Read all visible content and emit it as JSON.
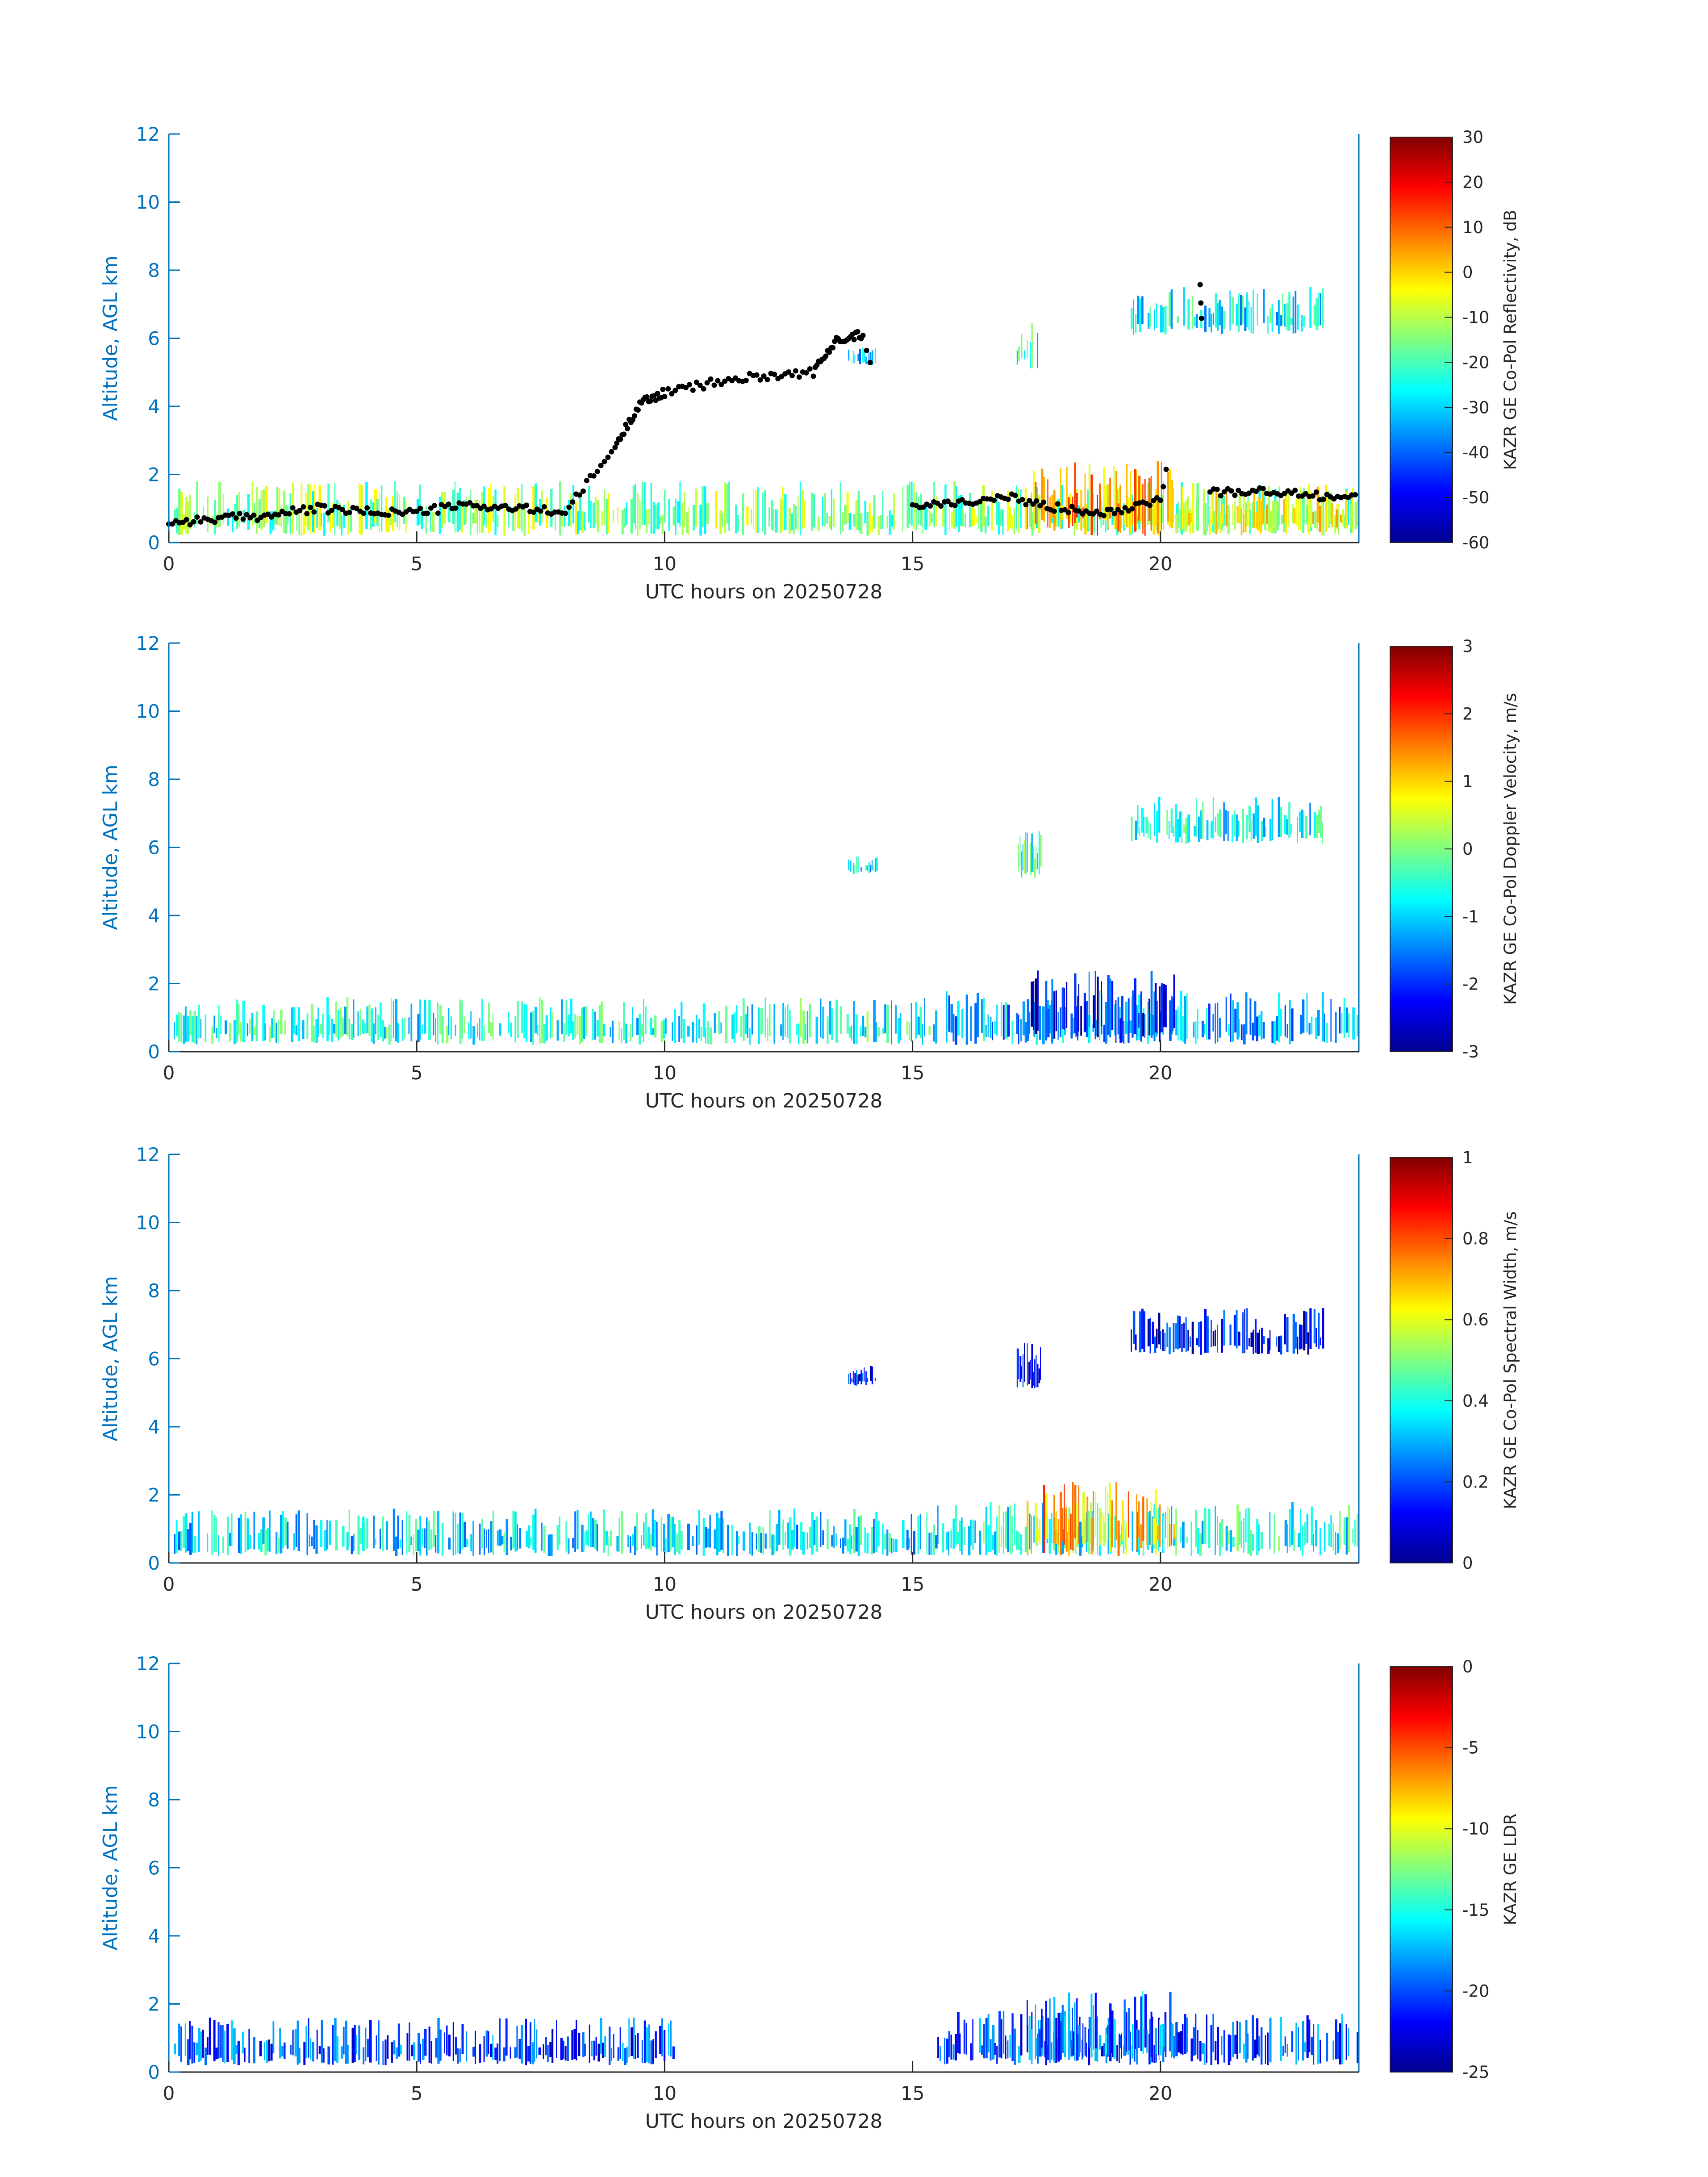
{
  "chart_data": [
    {
      "type": "heatmap",
      "panel": "reflectivity",
      "xlabel": "UTC hours on 20250728",
      "ylabel": "Altitude, AGL km",
      "xlim": [
        0,
        24
      ],
      "ylim": [
        0,
        12
      ],
      "xticks": [
        0,
        5,
        10,
        15,
        20
      ],
      "yticks": [
        0,
        2,
        4,
        6,
        8,
        10,
        12
      ],
      "colorbar": {
        "label": "KAZR GE Co-Pol Reflectivity, dB",
        "range": [
          -60,
          30
        ],
        "ticks": [
          30,
          20,
          10,
          0,
          -10,
          -20,
          -30,
          -40,
          -50,
          -60
        ]
      },
      "echoes": [
        {
          "x0": 0.1,
          "x1": 24.0,
          "y0": 0.2,
          "y1": 1.8,
          "level": 0.5
        },
        {
          "x0": 17.3,
          "x1": 20.3,
          "y0": 0.2,
          "y1": 2.4,
          "level": 0.72
        },
        {
          "x0": 20.3,
          "x1": 24.0,
          "y0": 0.2,
          "y1": 1.8,
          "level": 0.6
        },
        {
          "x0": 13.7,
          "x1": 14.3,
          "y0": 5.2,
          "y1": 5.8,
          "level": 0.35
        },
        {
          "x0": 17.1,
          "x1": 17.6,
          "y0": 5.1,
          "y1": 6.5,
          "level": 0.4
        },
        {
          "x0": 19.4,
          "x1": 23.3,
          "y0": 6.1,
          "y1": 7.5,
          "level": 0.37
        }
      ],
      "cloud_base_series": {
        "x": [
          0,
          1,
          2,
          3,
          4,
          5,
          6,
          7,
          8,
          9,
          9.5,
          10,
          11,
          12,
          13,
          13.5,
          14,
          15,
          16,
          17,
          18,
          19,
          20,
          20.8,
          21,
          22,
          23,
          24
        ],
        "y": [
          0.6,
          0.7,
          0.8,
          1.0,
          0.9,
          0.9,
          1.1,
          1.0,
          0.9,
          2.8,
          4.1,
          4.4,
          4.7,
          4.9,
          5.0,
          6.0,
          6.1,
          1.1,
          1.2,
          1.3,
          1.0,
          0.9,
          1.3,
          7.5,
          1.5,
          1.5,
          1.4,
          1.3
        ]
      }
    },
    {
      "type": "heatmap",
      "panel": "doppler_velocity",
      "xlabel": "UTC hours on 20250728",
      "ylabel": "Altitude, AGL km",
      "xlim": [
        0,
        24
      ],
      "ylim": [
        0,
        12
      ],
      "xticks": [
        0,
        5,
        10,
        15,
        20
      ],
      "yticks": [
        0,
        2,
        4,
        6,
        8,
        10,
        12
      ],
      "colorbar": {
        "label": "KAZR GE Co-Pol Doppler Velocity, m/s",
        "range": [
          -3,
          3
        ],
        "ticks": [
          3,
          2,
          1,
          0,
          -1,
          -2,
          -3
        ]
      },
      "echoes": [
        {
          "x0": 0.1,
          "x1": 15.5,
          "y0": 0.2,
          "y1": 1.6,
          "level": 0.4
        },
        {
          "x0": 15.5,
          "x1": 24.0,
          "y0": 0.2,
          "y1": 1.8,
          "level": 0.3
        },
        {
          "x0": 17.3,
          "x1": 20.3,
          "y0": 0.2,
          "y1": 2.4,
          "level": 0.12
        },
        {
          "x0": 13.7,
          "x1": 14.3,
          "y0": 5.2,
          "y1": 5.8,
          "level": 0.38
        },
        {
          "x0": 17.1,
          "x1": 17.6,
          "y0": 5.1,
          "y1": 6.5,
          "level": 0.42
        },
        {
          "x0": 19.4,
          "x1": 23.3,
          "y0": 6.1,
          "y1": 7.5,
          "level": 0.38
        }
      ]
    },
    {
      "type": "heatmap",
      "panel": "spectral_width",
      "xlabel": "UTC hours on 20250728",
      "ylabel": "Altitude, AGL km",
      "xlim": [
        0,
        24
      ],
      "ylim": [
        0,
        12
      ],
      "xticks": [
        0,
        5,
        10,
        15,
        20
      ],
      "yticks": [
        0,
        2,
        4,
        6,
        8,
        10,
        12
      ],
      "colorbar": {
        "label": "KAZR GE Co-Pol Spectral Width, m/s",
        "range": [
          0,
          1
        ],
        "ticks": [
          1,
          0.8,
          0.6,
          0.4,
          0.2,
          0
        ]
      },
      "echoes": [
        {
          "x0": 0.1,
          "x1": 15.5,
          "y0": 0.2,
          "y1": 1.6,
          "level": 0.35
        },
        {
          "x0": 15.5,
          "x1": 24.0,
          "y0": 0.2,
          "y1": 1.8,
          "level": 0.4
        },
        {
          "x0": 17.3,
          "x1": 20.3,
          "y0": 0.2,
          "y1": 2.4,
          "level": 0.7
        },
        {
          "x0": 13.7,
          "x1": 14.3,
          "y0": 5.2,
          "y1": 5.8,
          "level": 0.12
        },
        {
          "x0": 17.1,
          "x1": 17.6,
          "y0": 5.1,
          "y1": 6.5,
          "level": 0.12
        },
        {
          "x0": 19.4,
          "x1": 23.3,
          "y0": 6.1,
          "y1": 7.5,
          "level": 0.12
        }
      ]
    },
    {
      "type": "heatmap",
      "panel": "ldr",
      "xlabel": "UTC hours on 20250728",
      "ylabel": "Altitude, AGL km",
      "xlim": [
        0,
        24
      ],
      "ylim": [
        0,
        12
      ],
      "xticks": [
        0,
        5,
        10,
        15,
        20
      ],
      "yticks": [
        0,
        2,
        4,
        6,
        8,
        10,
        12
      ],
      "colorbar": {
        "label": "KAZR GE LDR",
        "range": [
          -25,
          0
        ],
        "ticks": [
          0,
          -5,
          -10,
          -15,
          -20,
          -25
        ]
      },
      "echoes": [
        {
          "x0": 0.1,
          "x1": 10.2,
          "y0": 0.2,
          "y1": 1.6,
          "level": 0.2
        },
        {
          "x0": 15.5,
          "x1": 24.0,
          "y0": 0.2,
          "y1": 1.8,
          "level": 0.2
        },
        {
          "x0": 17.3,
          "x1": 20.3,
          "y0": 0.2,
          "y1": 2.4,
          "level": 0.25
        }
      ]
    }
  ]
}
